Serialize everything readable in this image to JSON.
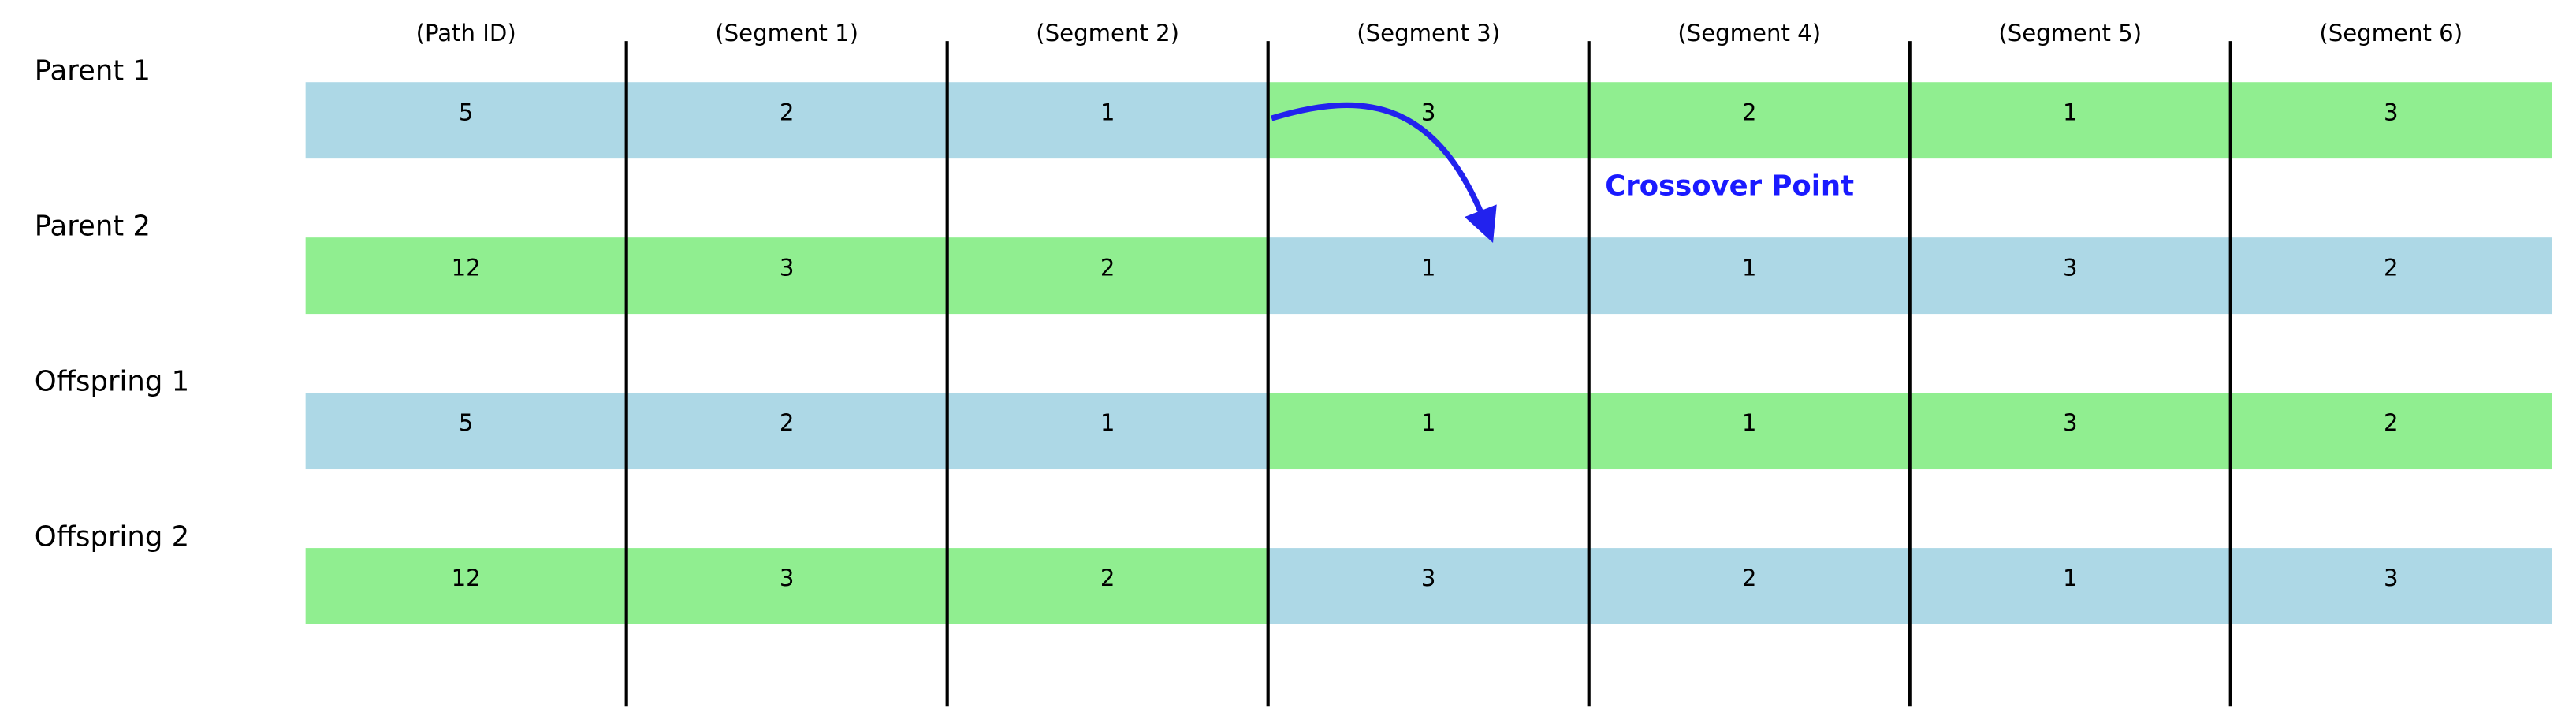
{
  "columns": [
    "(Path ID)",
    "(Segment 1)",
    "(Segment 2)",
    "(Segment 3)",
    "(Segment 4)",
    "(Segment 5)",
    "(Segment 6)"
  ],
  "rows": [
    {
      "label": "Parent 1",
      "values": [
        5,
        2,
        1,
        3,
        2,
        1,
        3
      ],
      "colors": [
        "#add8e6",
        "#add8e6",
        "#add8e6",
        "#90ee90",
        "#90ee90",
        "#90ee90",
        "#90ee90"
      ]
    },
    {
      "label": "Parent 2",
      "values": [
        12,
        3,
        2,
        1,
        1,
        3,
        2
      ],
      "colors": [
        "#90ee90",
        "#90ee90",
        "#90ee90",
        "#add8e6",
        "#add8e6",
        "#add8e6",
        "#add8e6"
      ]
    },
    {
      "label": "Offspring 1",
      "values": [
        5,
        2,
        1,
        1,
        1,
        3,
        2
      ],
      "colors": [
        "#add8e6",
        "#add8e6",
        "#add8e6",
        "#90ee90",
        "#90ee90",
        "#90ee90",
        "#90ee90"
      ]
    },
    {
      "label": "Offspring 2",
      "values": [
        12,
        3,
        2,
        3,
        2,
        1,
        3
      ],
      "colors": [
        "#90ee90",
        "#90ee90",
        "#90ee90",
        "#add8e6",
        "#add8e6",
        "#add8e6",
        "#add8e6"
      ]
    }
  ],
  "annotation": "Crossover Point",
  "annotation_color": "#1a1aff"
}
